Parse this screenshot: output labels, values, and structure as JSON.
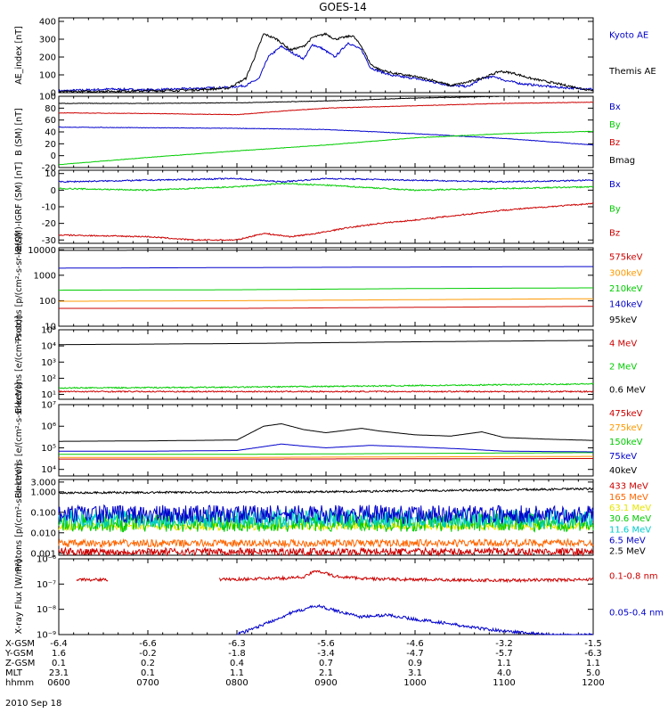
{
  "chart_data": {
    "type": "line",
    "title": "GOES-14",
    "date_label": "2010 Sep 18",
    "time_axis": {
      "hours": [
        6,
        12
      ],
      "ticks": [
        "0600",
        "0700",
        "0800",
        "0900",
        "1000",
        "1100",
        "1200"
      ]
    },
    "panels": [
      {
        "id": "ae",
        "ylabel": "AE_index [nT]",
        "scale": "linear",
        "ylim": [
          0,
          420
        ],
        "ticks": [
          0,
          100,
          200,
          300,
          400
        ],
        "tick_labels": [
          "0",
          "100",
          "200",
          "300",
          "400"
        ],
        "series": [
          {
            "name": "Kyoto AE",
            "color": "#0000cc",
            "x": [
              6.0,
              6.3,
              6.6,
              7.0,
              7.3,
              7.6,
              7.9,
              8.1,
              8.25,
              8.35,
              8.5,
              8.6,
              8.75,
              8.85,
              8.95,
              9.1,
              9.25,
              9.4,
              9.5,
              9.6,
              9.75,
              10.0,
              10.2,
              10.4,
              10.6,
              10.75,
              10.9,
              11.0,
              11.2,
              11.4,
              11.6,
              11.8,
              12.0
            ],
            "y": [
              10,
              15,
              20,
              15,
              20,
              25,
              30,
              40,
              80,
              200,
              260,
              230,
              190,
              270,
              250,
              200,
              280,
              240,
              140,
              120,
              95,
              80,
              60,
              40,
              35,
              80,
              90,
              70,
              50,
              40,
              30,
              25,
              20
            ]
          },
          {
            "name": "Themis AE",
            "color": "#000000",
            "x": [
              6.0,
              6.5,
              7.0,
              7.5,
              7.9,
              8.1,
              8.2,
              8.3,
              8.45,
              8.6,
              8.75,
              8.85,
              9.0,
              9.1,
              9.3,
              9.4,
              9.5,
              9.6,
              9.75,
              10.0,
              10.2,
              10.4,
              10.6,
              10.8,
              10.95,
              11.1,
              11.3,
              11.5,
              11.7,
              11.9,
              12.0
            ],
            "y": [
              5,
              8,
              10,
              15,
              25,
              80,
              200,
              330,
              300,
              240,
              260,
              310,
              330,
              300,
              320,
              260,
              160,
              130,
              110,
              90,
              70,
              40,
              60,
              90,
              120,
              110,
              80,
              60,
              40,
              20,
              15
            ]
          }
        ]
      },
      {
        "id": "bsm",
        "ylabel": "B (SM) [nT]",
        "scale": "linear",
        "ylim": [
          -20,
          100
        ],
        "ticks": [
          -20,
          0,
          20,
          40,
          60,
          80,
          100
        ],
        "tick_labels": [
          "-20",
          "0",
          "20",
          "40",
          "60",
          "80",
          "100"
        ],
        "series": [
          {
            "name": "Bx",
            "color": "#0000cc",
            "x": [
              6,
              7,
              8,
              9,
              10,
              11,
              12
            ],
            "y": [
              48,
              47,
              46,
              44,
              37,
              29,
              18
            ]
          },
          {
            "name": "By",
            "color": "#00cc00",
            "x": [
              6,
              7,
              8,
              9,
              10,
              11,
              12
            ],
            "y": [
              -15,
              -3,
              8,
              18,
              30,
              37,
              41
            ]
          },
          {
            "name": "Bz",
            "color": "#cc0000",
            "x": [
              6,
              7,
              8,
              8.5,
              9,
              10,
              11,
              12
            ],
            "y": [
              72,
              71,
              69,
              75,
              80,
              84,
              88,
              90
            ]
          },
          {
            "name": "Bmag",
            "color": "#000000",
            "x": [
              6,
              7,
              8,
              9,
              10,
              11,
              12
            ],
            "y": [
              88,
              88,
              89,
              92,
              97,
              100,
              101
            ]
          }
        ]
      },
      {
        "id": "bigrf",
        "ylabel": "B(SM)-IGRF (SM) [nT]",
        "scale": "linear",
        "ylim": [
          -32,
          12
        ],
        "ticks": [
          -30,
          -20,
          -10,
          0,
          10
        ],
        "tick_labels": [
          "-30",
          "-20",
          "-10",
          "0",
          "10"
        ],
        "series": [
          {
            "name": "Bx",
            "color": "#0000cc",
            "x": [
              6,
              7,
              8,
              8.5,
              9,
              10,
              11,
              12
            ],
            "y": [
              5,
              6,
              7,
              5,
              7,
              6,
              5,
              6
            ]
          },
          {
            "name": "By",
            "color": "#00cc00",
            "x": [
              6,
              7,
              8,
              8.5,
              9,
              10,
              11,
              12
            ],
            "y": [
              1,
              0,
              2,
              4,
              3,
              0,
              1,
              2
            ]
          },
          {
            "name": "Bz",
            "color": "#cc0000",
            "x": [
              6,
              7,
              7.5,
              8,
              8.3,
              8.6,
              8.9,
              9.2,
              9.6,
              10,
              10.5,
              11,
              11.5,
              12
            ],
            "y": [
              -27,
              -28,
              -30,
              -30,
              -26,
              -28,
              -26,
              -23,
              -20,
              -18,
              -15,
              -12,
              -10,
              -8
            ]
          }
        ]
      },
      {
        "id": "protons_mage",
        "ylabel": "Protons [p/(cm²-s-sr-keV)]",
        "scale": "log",
        "ylim": [
          10,
          12000
        ],
        "ticks": [
          10,
          100,
          1000,
          10000
        ],
        "tick_labels": [
          "10",
          "100",
          "1000",
          "10000"
        ],
        "series": [
          {
            "name": "575keV",
            "color": "#cc0000",
            "x": [
              6,
              8,
              10,
              12
            ],
            "y": [
              50,
              50,
              55,
              60
            ]
          },
          {
            "name": "300keV",
            "color": "#ff9900",
            "x": [
              6,
              8,
              10,
              12
            ],
            "y": [
              95,
              100,
              110,
              120
            ]
          },
          {
            "name": "210keV",
            "color": "#00cc00",
            "x": [
              6,
              8,
              10,
              12
            ],
            "y": [
              260,
              270,
              300,
              320
            ]
          },
          {
            "name": "140keV",
            "color": "#0000cc",
            "x": [
              6,
              8,
              10,
              12
            ],
            "y": [
              1900,
              2000,
              2100,
              2200
            ]
          },
          {
            "name": "95keV",
            "color": "#000000",
            "x": [
              6,
              8,
              10,
              12
            ],
            "y": [
              9500,
              9600,
              9800,
              9900
            ]
          }
        ]
      },
      {
        "id": "electrons_epead",
        "ylabel": "Electrons [e/(cm²-s-sr)]",
        "scale": "log",
        "ylim": [
          5,
          100000
        ],
        "ticks": [
          10,
          100,
          1000,
          10000,
          100000
        ],
        "tick_labels": [
          "10¹",
          "10²",
          "10³",
          "10⁴",
          "10⁵"
        ],
        "series": [
          {
            "name": "4 MeV",
            "color": "#cc0000",
            "x": [
              6,
              8,
              10,
              12
            ],
            "y": [
              15,
              15,
              15,
              15
            ]
          },
          {
            "name": "2 MeV",
            "color": "#00cc00",
            "x": [
              6,
              8,
              10,
              12
            ],
            "y": [
              25,
              28,
              35,
              45
            ]
          },
          {
            "name": "0.6 MeV",
            "color": "#000000",
            "x": [
              6,
              8,
              10,
              12
            ],
            "y": [
              12000,
              14000,
              18000,
              22000
            ]
          }
        ]
      },
      {
        "id": "electrons_mage",
        "ylabel": "Electrons [e/(cm²-s-sr-keV)]",
        "scale": "log",
        "ylim": [
          5000,
          10000000
        ],
        "ticks": [
          10000,
          100000,
          1000000,
          10000000
        ],
        "tick_labels": [
          "10⁴",
          "10⁵",
          "10⁶",
          "10⁷"
        ],
        "series": [
          {
            "name": "475keV",
            "color": "#cc0000",
            "x": [
              6,
              8,
              10,
              12
            ],
            "y": [
              30000,
              30000,
              31000,
              32000
            ]
          },
          {
            "name": "275keV",
            "color": "#ff9900",
            "x": [
              6,
              8,
              10,
              12
            ],
            "y": [
              36000,
              36000,
              38000,
              40000
            ]
          },
          {
            "name": "150keV",
            "color": "#00cc00",
            "x": [
              6,
              8,
              10,
              12
            ],
            "y": [
              50000,
              50000,
              55000,
              60000
            ]
          },
          {
            "name": "75keV",
            "color": "#0000cc",
            "x": [
              6,
              7,
              8,
              8.5,
              8.75,
              9,
              9.5,
              10,
              10.5,
              11,
              12
            ],
            "y": [
              70000,
              70000,
              75000,
              150000,
              120000,
              100000,
              130000,
              110000,
              90000,
              70000,
              65000
            ]
          },
          {
            "name": "40keV",
            "color": "#000000",
            "x": [
              6,
              7,
              8,
              8.3,
              8.5,
              8.75,
              9,
              9.4,
              9.6,
              10,
              10.4,
              10.75,
              11,
              11.5,
              12
            ],
            "y": [
              200000,
              210000,
              230000,
              1000000,
              1300000,
              700000,
              500000,
              800000,
              600000,
              400000,
              350000,
              550000,
              300000,
              250000,
              220000
            ]
          }
        ]
      },
      {
        "id": "protons_epead",
        "ylabel": "Protons [p/(cm²-s-sr-keV)]",
        "scale": "log",
        "ylim": [
          0.0008,
          4
        ],
        "ticks": [
          0.001,
          0.01,
          0.1,
          1,
          3
        ],
        "tick_labels": [
          "0.001",
          "0.010",
          "0.100",
          "1.000",
          "3.000"
        ],
        "series": [
          {
            "name": "433 MeV",
            "color": "#cc0000",
            "x": [
              6,
              12
            ],
            "y": [
              0.0012,
              0.0012
            ]
          },
          {
            "name": "165 MeV",
            "color": "#ff6600",
            "x": [
              6,
              12
            ],
            "y": [
              0.003,
              0.0032
            ]
          },
          {
            "name": "63.1 MeV",
            "color": "#e6e600",
            "x": [
              6,
              12
            ],
            "y": [
              0.02,
              0.021
            ]
          },
          {
            "name": "30.6 MeV",
            "color": "#00cc00",
            "x": [
              6,
              12
            ],
            "y": [
              0.03,
              0.032
            ]
          },
          {
            "name": "11.6 MeV",
            "color": "#00cccc",
            "x": [
              6,
              12
            ],
            "y": [
              0.05,
              0.05
            ]
          },
          {
            "name": "6.5 MeV",
            "color": "#0000cc",
            "x": [
              6,
              12
            ],
            "y": [
              0.08,
              0.08
            ]
          },
          {
            "name": "2.5 MeV",
            "color": "#000000",
            "x": [
              6,
              9,
              12
            ],
            "y": [
              0.9,
              1.0,
              1.4
            ]
          }
        ]
      },
      {
        "id": "xray",
        "ylabel": "X-ray Flux [W/m²]",
        "scale": "log",
        "ylim": [
          1e-09,
          1e-06
        ],
        "ticks": [
          1e-09,
          1e-08,
          1e-07,
          1e-06
        ],
        "tick_labels": [
          "10⁻⁹",
          "10⁻⁸",
          "10⁻⁷",
          "10⁻⁶"
        ],
        "series": [
          {
            "name": "0.1-0.8 nm",
            "color": "#cc0000",
            "segments": [
              {
                "x": [
                  6.2,
                  6.55
                ],
                "y": [
                  1.5e-07,
                  1.5e-07
                ]
              },
              {
                "x": [
                  7.8,
                  8.5,
                  8.75,
                  8.9,
                  9.1,
                  9.5,
                  10,
                  11,
                  12
                ],
                "y": [
                  1.5e-07,
                  1.7e-07,
                  1.9e-07,
                  3.5e-07,
                  2e-07,
                  1.6e-07,
                  1.5e-07,
                  1.4e-07,
                  1.5e-07
                ]
              }
            ]
          },
          {
            "name": "0.05-0.4 nm",
            "color": "#0000cc",
            "segments": [
              {
                "x": [
                  8.0,
                  8.3,
                  8.6,
                  8.9,
                  9.1,
                  9.4,
                  9.7,
                  10.0,
                  10.3,
                  10.6,
                  10.9,
                  11.2,
                  11.5,
                  11.8,
                  12.0
                ],
                "y": [
                  1e-09,
                  2.5e-09,
                  7e-09,
                  1.4e-08,
                  9e-09,
                  5e-09,
                  6e-09,
                  4e-09,
                  3e-09,
                  2e-09,
                  1.5e-09,
                  1.2e-09,
                  1e-09,
                  9e-10,
                  1e-09
                ]
              }
            ]
          }
        ]
      }
    ],
    "position_table": {
      "rows": [
        {
          "label": "X-GSM",
          "values": [
            "-6.4",
            "-6.6",
            "-6.3",
            "-5.6",
            "-4.6",
            "-3.2",
            "-1.5"
          ]
        },
        {
          "label": "Y-GSM",
          "values": [
            "1.6",
            "-0.2",
            "-1.8",
            "-3.4",
            "-4.7",
            "-5.7",
            "-6.3"
          ]
        },
        {
          "label": "Z-GSM",
          "values": [
            "0.1",
            "0.2",
            "0.4",
            "0.7",
            "0.9",
            "1.1",
            "1.1"
          ]
        },
        {
          "label": "MLT",
          "values": [
            "23.1",
            "0.1",
            "1.1",
            "2.1",
            "3.1",
            "4.0",
            "5.0"
          ]
        },
        {
          "label": "hhmm",
          "values": [
            "0600",
            "0700",
            "0800",
            "0900",
            "1000",
            "1100",
            "1200"
          ]
        }
      ]
    }
  }
}
